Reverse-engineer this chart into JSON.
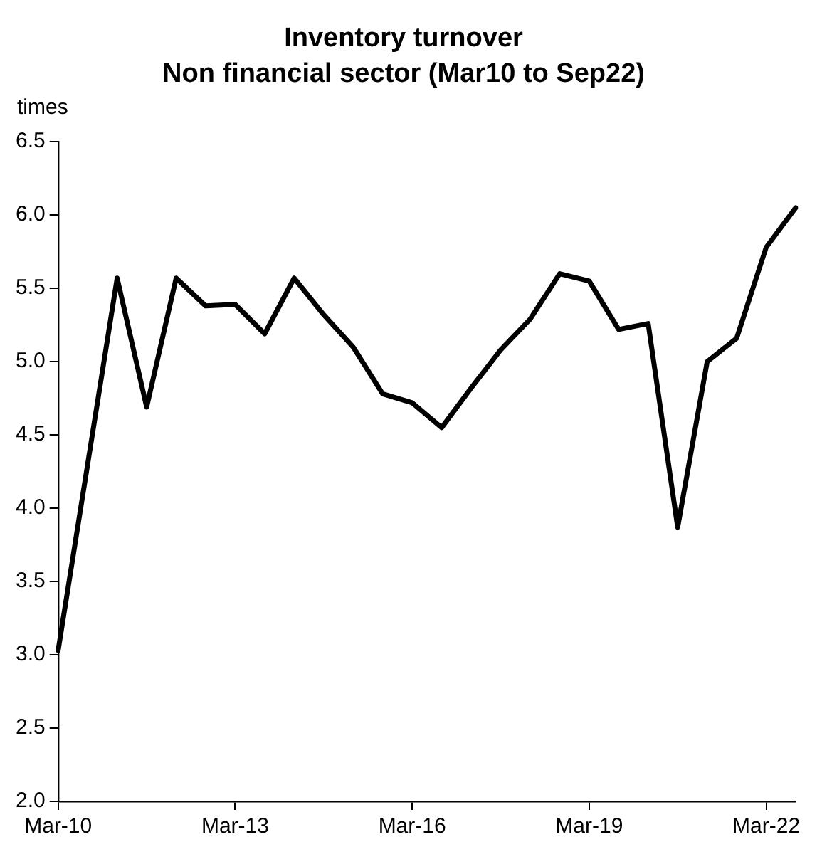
{
  "chart_data": {
    "type": "line",
    "title": "Inventory turnover",
    "subtitle": "Non financial sector (Mar10 to Sep22)",
    "ylabel": "times",
    "categories": [
      "Mar-10",
      null,
      null,
      null,
      null,
      null,
      "Mar-13",
      null,
      null,
      null,
      null,
      null,
      "Mar-16",
      null,
      null,
      null,
      null,
      null,
      "Mar-19",
      null,
      null,
      null,
      null,
      null,
      "Mar-22",
      null
    ],
    "series": [
      {
        "color": "#000000",
        "values": [
          3.03,
          4.3,
          5.57,
          4.69,
          5.57,
          5.38,
          5.39,
          5.19,
          5.57,
          5.32,
          5.1,
          4.78,
          4.72,
          4.55,
          4.82,
          5.08,
          5.29,
          5.6,
          5.55,
          5.22,
          5.26,
          3.87,
          5.0,
          5.16,
          5.78,
          6.05
        ]
      }
    ],
    "ylim": [
      2.0,
      6.5
    ],
    "yticks": [
      {
        "value": 2,
        "label": "2.0"
      },
      {
        "value": 2.5,
        "label": "2.5"
      },
      {
        "value": 3,
        "label": "3.0"
      },
      {
        "value": 3.5,
        "label": "3.5"
      },
      {
        "value": 4,
        "label": "4.0"
      },
      {
        "value": 4.5,
        "label": "4.5"
      },
      {
        "value": 5,
        "label": "5.0"
      },
      {
        "value": 5.5,
        "label": "5.5"
      },
      {
        "value": 6,
        "label": "6.0"
      },
      {
        "value": 6.5,
        "label": "6.5"
      }
    ],
    "grid": false,
    "legend": false,
    "marker": "none",
    "line_style": "solid"
  }
}
